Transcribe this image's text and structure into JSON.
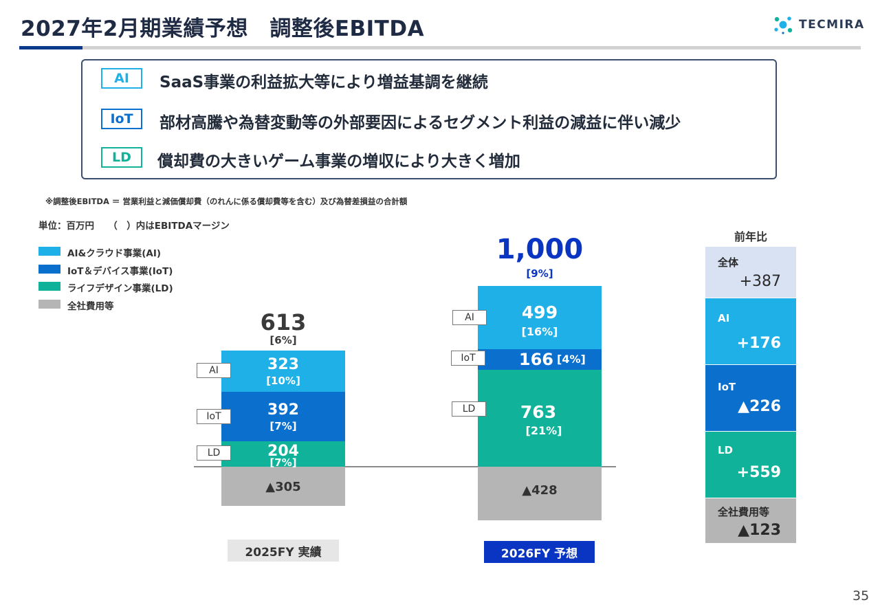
{
  "header": {
    "title": "2027年2月期業績予想　調整後EBITDA",
    "logo_text": "TECMIRA",
    "page_number": "35"
  },
  "summary": {
    "items": [
      {
        "tag": "AI",
        "text": "SaaS事業の利益拡大等により増益基調を継続"
      },
      {
        "tag": "IoT",
        "text": "部材高騰や為替変動等の外部要因によるセグメント利益の減益に伴い減少"
      },
      {
        "tag": "LD",
        "text": "償却費の大きいゲーム事業の増収により大きく増加"
      }
    ]
  },
  "note": "※調整後EBITDA ＝ 営業利益と減価償却費（のれんに係る償却費等を含む）及び為替差損益の合計額",
  "unit_label": "単位：百万円　　（　）内はEBITDAマージン",
  "colors": {
    "ai": "#1fb0e8",
    "iot": "#0b6fce",
    "ld": "#10b39a",
    "corporate": "#b5b5b5",
    "total_2026": "#0a34c2",
    "fy2026_bg": "#0a34c2"
  },
  "chart_data": {
    "type": "bar",
    "stacked": true,
    "categories": [
      "2025FY 実績",
      "2026FY 予想"
    ],
    "legend": [
      "AI&クラウド事業(AI)",
      "IoT＆デバイス事業(IoT)",
      "ライフデザイン事業(LD)",
      "全社費用等"
    ],
    "series": [
      {
        "name": "AI&クラウド事業(AI)",
        "short": "AI",
        "values": [
          323,
          499
        ],
        "margin_labels": [
          "[10%]",
          "[16%]"
        ]
      },
      {
        "name": "IoT＆デバイス事業(IoT)",
        "short": "IoT",
        "values": [
          392,
          166
        ],
        "margin_labels": [
          "[7%]",
          "[4%]"
        ]
      },
      {
        "name": "ライフデザイン事業(LD)",
        "short": "LD",
        "values": [
          204,
          763
        ],
        "margin_labels": [
          "[7%]",
          "[21%]"
        ]
      },
      {
        "name": "全社費用等",
        "values": [
          -305,
          -428
        ],
        "value_labels": [
          "▲305",
          "▲428"
        ]
      }
    ],
    "totals": [
      {
        "value": "613",
        "margin": "[6%]"
      },
      {
        "value": "1,000",
        "margin": "[9%]"
      }
    ]
  },
  "yoy": {
    "title": "前年比",
    "rows": [
      {
        "name": "全体",
        "value": "+387"
      },
      {
        "name": "AI",
        "value": "+176"
      },
      {
        "name": "IoT",
        "value": "▲226"
      },
      {
        "name": "LD",
        "value": "+559"
      },
      {
        "name": "全社費用等",
        "value": "▲123"
      }
    ]
  }
}
